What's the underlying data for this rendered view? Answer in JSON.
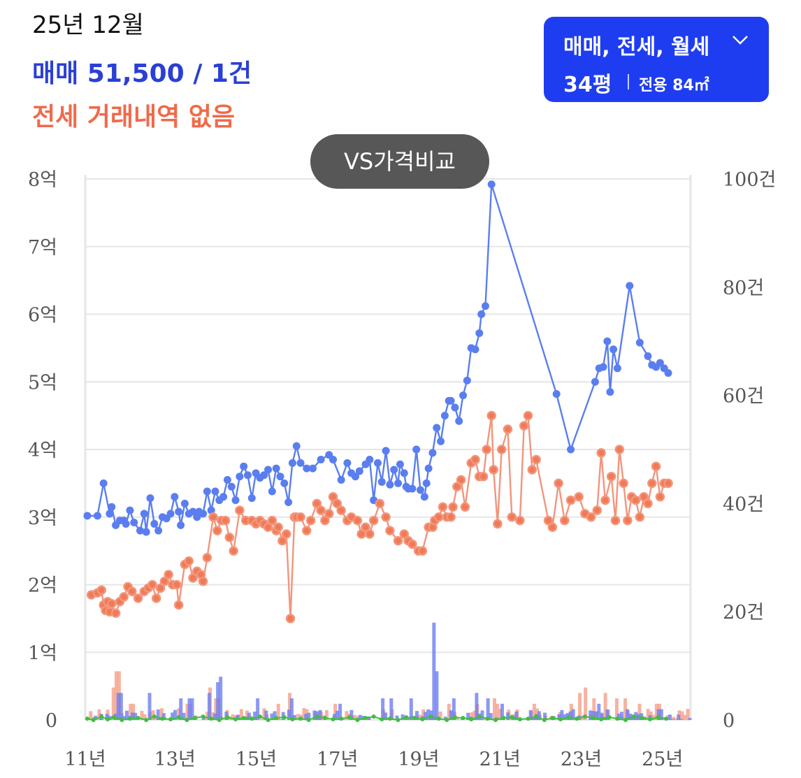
{
  "header": {
    "date": "25년 12월",
    "sale_summary": "매매 51,500 / 1건",
    "jeonse_summary": "전세 거래내역 없음"
  },
  "filter": {
    "types": "매매, 전세, 월세",
    "size": "34평",
    "area": "전용 84㎡",
    "icon": "chevron-down-icon"
  },
  "compare_button": "VS가격비교",
  "colors": {
    "sale": "#5a7ef0",
    "jeonse": "#f2957c",
    "jeonse_marker": "#f07a55",
    "rent_volume": "#3fbf3f",
    "sale_volume": "#6e7ff0",
    "jeonse_volume": "#f4a08a",
    "filter_bg": "#1f3df0",
    "grid": "#e6e6e6"
  },
  "chart_data": {
    "type": "line",
    "x_ticks": [
      "11년",
      "13년",
      "15년",
      "17년",
      "19년",
      "21년",
      "23년",
      "25년"
    ],
    "x_range": [
      2011.0,
      2025.9
    ],
    "y_left": {
      "ticks": [
        "0",
        "1억",
        "2억",
        "3억",
        "4억",
        "5억",
        "6억",
        "7억",
        "8억"
      ],
      "range": [
        0,
        8
      ],
      "unit": "억"
    },
    "y_right": {
      "ticks": [
        "0",
        "20건",
        "40건",
        "60건",
        "80건",
        "100건"
      ],
      "range": [
        0,
        100
      ]
    },
    "grid": true,
    "series": [
      {
        "key": "sale",
        "axis": "left",
        "x": [
          2011.05,
          2011.3,
          2011.45,
          2011.6,
          2011.65,
          2011.75,
          2011.85,
          2011.95,
          2012.0,
          2012.1,
          2012.2,
          2012.35,
          2012.45,
          2012.5,
          2012.6,
          2012.7,
          2012.8,
          2012.9,
          2013.0,
          2013.1,
          2013.2,
          2013.3,
          2013.35,
          2013.45,
          2013.55,
          2013.65,
          2013.75,
          2013.8,
          2013.9,
          2014.0,
          2014.1,
          2014.2,
          2014.3,
          2014.4,
          2014.5,
          2014.6,
          2014.7,
          2014.8,
          2014.9,
          2015.0,
          2015.1,
          2015.2,
          2015.3,
          2015.4,
          2015.5,
          2015.6,
          2015.7,
          2015.8,
          2015.9,
          2016.0,
          2016.1,
          2016.2,
          2016.3,
          2016.45,
          2016.6,
          2016.8,
          2017.0,
          2017.1,
          2017.3,
          2017.45,
          2017.55,
          2017.65,
          2017.75,
          2017.9,
          2018.0,
          2018.1,
          2018.2,
          2018.3,
          2018.4,
          2018.5,
          2018.6,
          2018.7,
          2018.75,
          2018.85,
          2018.9,
          2018.95,
          2019.05,
          2019.15,
          2019.25,
          2019.35,
          2019.4,
          2019.45,
          2019.55,
          2019.65,
          2019.75,
          2019.85,
          2019.95,
          2020.0,
          2020.1,
          2020.2,
          2020.3,
          2020.4,
          2020.5,
          2020.6,
          2020.7,
          2020.75,
          2020.85,
          2021.0,
          2022.6,
          2022.95,
          2023.55,
          2023.65,
          2023.75,
          2023.85,
          2023.92,
          2024.0,
          2024.1,
          2024.4,
          2024.65,
          2024.85,
          2024.95,
          2025.05,
          2025.15,
          2025.25,
          2025.35
        ],
        "y": [
          3.02,
          3.02,
          3.5,
          3.05,
          3.15,
          2.88,
          2.95,
          2.95,
          2.9,
          3.1,
          2.92,
          2.8,
          3.05,
          2.78,
          3.28,
          2.9,
          2.8,
          3.0,
          2.98,
          3.05,
          3.3,
          3.08,
          2.88,
          3.2,
          3.05,
          3.08,
          3.0,
          3.08,
          3.05,
          3.38,
          3.1,
          3.38,
          3.25,
          3.3,
          3.55,
          3.45,
          3.25,
          3.6,
          3.75,
          3.62,
          3.28,
          3.65,
          3.58,
          3.62,
          3.7,
          3.38,
          3.72,
          3.6,
          3.5,
          3.22,
          3.8,
          4.05,
          3.8,
          3.72,
          3.72,
          3.85,
          3.92,
          3.85,
          3.55,
          3.8,
          3.65,
          3.6,
          3.68,
          3.78,
          3.85,
          3.25,
          3.8,
          3.52,
          3.98,
          3.48,
          3.7,
          3.5,
          3.78,
          3.65,
          3.45,
          3.42,
          3.42,
          4.0,
          3.4,
          3.3,
          3.5,
          3.72,
          3.95,
          4.32,
          4.12,
          4.5,
          4.72,
          4.72,
          4.62,
          4.42,
          4.8,
          5.02,
          5.5,
          5.48,
          5.72,
          6.0,
          6.12,
          7.92,
          4.82,
          4.0,
          5.0,
          5.2,
          5.22,
          5.6,
          4.85,
          5.48,
          5.2,
          6.42,
          5.58,
          5.38,
          5.25,
          5.22,
          5.28,
          5.2,
          5.13
        ]
      },
      {
        "key": "jeonse",
        "axis": "left",
        "x": [
          2011.15,
          2011.3,
          2011.4,
          2011.45,
          2011.5,
          2011.55,
          2011.6,
          2011.65,
          2011.75,
          2011.85,
          2011.95,
          2012.05,
          2012.15,
          2012.3,
          2012.45,
          2012.55,
          2012.65,
          2012.75,
          2012.85,
          2012.95,
          2013.05,
          2013.15,
          2013.25,
          2013.3,
          2013.45,
          2013.55,
          2013.65,
          2013.75,
          2013.85,
          2013.9,
          2014.0,
          2014.15,
          2014.25,
          2014.35,
          2014.45,
          2014.55,
          2014.65,
          2014.8,
          2014.95,
          2015.1,
          2015.2,
          2015.3,
          2015.4,
          2015.5,
          2015.6,
          2015.7,
          2015.75,
          2015.85,
          2015.95,
          2016.05,
          2016.15,
          2016.2,
          2016.3,
          2016.45,
          2016.55,
          2016.7,
          2016.8,
          2016.9,
          2017.0,
          2017.1,
          2017.2,
          2017.3,
          2017.45,
          2017.55,
          2017.7,
          2017.8,
          2017.9,
          2018.0,
          2018.1,
          2018.25,
          2018.4,
          2018.5,
          2018.7,
          2018.85,
          2018.95,
          2019.05,
          2019.2,
          2019.3,
          2019.45,
          2019.55,
          2019.6,
          2019.7,
          2019.8,
          2019.9,
          2020.0,
          2020.05,
          2020.15,
          2020.25,
          2020.35,
          2020.5,
          2020.6,
          2020.7,
          2020.8,
          2020.88,
          2021.0,
          2021.05,
          2021.15,
          2021.25,
          2021.4,
          2021.5,
          2021.7,
          2021.8,
          2021.9,
          2022.0,
          2022.1,
          2022.4,
          2022.5,
          2022.65,
          2022.8,
          2022.95,
          2023.15,
          2023.3,
          2023.45,
          2023.6,
          2023.7,
          2023.8,
          2023.95,
          2024.05,
          2024.15,
          2024.25,
          2024.35,
          2024.45,
          2024.55,
          2024.65,
          2024.75,
          2024.85,
          2024.95,
          2025.05,
          2025.15,
          2025.25,
          2025.35
        ],
        "y": [
          1.85,
          1.88,
          1.92,
          1.7,
          1.62,
          1.75,
          1.6,
          1.72,
          1.58,
          1.75,
          1.82,
          1.97,
          1.9,
          1.8,
          1.9,
          1.95,
          2.0,
          1.8,
          1.95,
          2.05,
          2.15,
          2.0,
          2.0,
          1.7,
          2.3,
          2.35,
          2.1,
          2.2,
          2.15,
          2.05,
          2.4,
          3.0,
          2.8,
          2.95,
          2.95,
          2.7,
          2.5,
          3.1,
          2.95,
          2.95,
          2.9,
          2.95,
          2.9,
          2.85,
          2.95,
          2.8,
          2.85,
          2.65,
          2.75,
          1.5,
          3.0,
          3.0,
          3.0,
          2.8,
          2.95,
          3.2,
          3.1,
          2.95,
          3.05,
          3.3,
          3.2,
          3.1,
          2.95,
          3.0,
          2.95,
          2.75,
          2.85,
          2.75,
          2.95,
          3.2,
          3.0,
          2.8,
          2.65,
          2.75,
          2.65,
          2.6,
          2.5,
          2.5,
          2.85,
          2.85,
          2.95,
          3.0,
          3.15,
          3.0,
          3.0,
          3.15,
          3.45,
          3.55,
          3.15,
          3.8,
          3.85,
          3.6,
          3.6,
          4.0,
          4.5,
          3.7,
          2.9,
          4.0,
          4.3,
          3.0,
          2.95,
          4.35,
          4.5,
          3.7,
          3.85,
          2.95,
          2.85,
          3.5,
          2.95,
          3.25,
          3.3,
          3.05,
          3.0,
          3.1,
          3.95,
          3.25,
          3.6,
          2.95,
          4.0,
          3.5,
          2.95,
          3.3,
          3.25,
          3.0,
          3.3,
          3.2,
          3.5,
          3.75,
          3.3,
          3.5,
          3.5
        ]
      },
      {
        "key": "rent",
        "axis": "left",
        "x": [
          2011.05,
          2011.2,
          2011.4,
          2011.55,
          2011.7,
          2011.9,
          2012.1,
          2012.3,
          2012.5,
          2012.7,
          2012.9,
          2013.1,
          2013.3,
          2013.5,
          2013.7,
          2013.9,
          2014.1,
          2014.3,
          2014.5,
          2014.7,
          2014.9,
          2015.1,
          2015.3,
          2015.5,
          2015.7,
          2015.9,
          2016.1,
          2016.3,
          2016.5,
          2016.7,
          2016.9,
          2017.1,
          2017.3,
          2017.5,
          2017.7,
          2017.9,
          2018.1,
          2018.3,
          2018.5,
          2018.7,
          2018.9,
          2019.1,
          2019.3,
          2019.5,
          2019.7,
          2019.9,
          2020.1,
          2020.3,
          2020.5,
          2020.7,
          2020.9,
          2021.1,
          2021.3,
          2021.5,
          2021.7,
          2021.9,
          2022.1,
          2022.3,
          2022.5,
          2022.7,
          2022.9,
          2023.1,
          2023.3,
          2023.5,
          2023.7,
          2023.9,
          2024.1,
          2024.3,
          2024.5,
          2024.7,
          2024.9,
          2025.1,
          2025.3
        ],
        "y": [
          0.02,
          0.0,
          0.05,
          0.01,
          0.04,
          0.0,
          0.02,
          0.03,
          0.0,
          0.05,
          0.02,
          0.01,
          0.04,
          0.0,
          0.03,
          0.05,
          0.02,
          0.0,
          0.04,
          0.01,
          0.03,
          0.02,
          0.05,
          0.0,
          0.03,
          0.04,
          0.01,
          0.02,
          0.0,
          0.05,
          0.03,
          0.01,
          0.02,
          0.04,
          0.0,
          0.03,
          0.05,
          0.01,
          0.02,
          0.0,
          0.04,
          0.03,
          0.01,
          0.05,
          0.02,
          0.0,
          0.04,
          0.03,
          0.01,
          0.05,
          0.02,
          0.0,
          0.03,
          0.04,
          0.01,
          0.02,
          0.05,
          0.0,
          0.03,
          0.01,
          0.04,
          0.02,
          0.05,
          0.03,
          0.01,
          0.04,
          0.02,
          0.0,
          0.05,
          0.03,
          0.01,
          0.04,
          0.02
        ]
      }
    ],
    "volume": {
      "axis": "right",
      "sale_peaks": [
        [
          2011.8,
          5
        ],
        [
          2012.55,
          5
        ],
        [
          2013.3,
          4
        ],
        [
          2013.55,
          4
        ],
        [
          2014.0,
          5
        ],
        [
          2014.2,
          7
        ],
        [
          2014.3,
          8
        ],
        [
          2015.2,
          4
        ],
        [
          2016.05,
          4
        ],
        [
          2017.2,
          3
        ],
        [
          2018.3,
          4
        ],
        [
          2018.5,
          4
        ],
        [
          2019.0,
          4
        ],
        [
          2019.55,
          18
        ],
        [
          2019.6,
          9
        ],
        [
          2020.05,
          4
        ],
        [
          2020.6,
          5
        ],
        [
          2020.85,
          4
        ],
        [
          2021.2,
          3
        ],
        [
          2022.95,
          2
        ],
        [
          2023.6,
          3
        ],
        [
          2024.3,
          2
        ],
        [
          2025.1,
          2
        ]
      ],
      "jeonse_peaks": [
        [
          2011.75,
          9
        ],
        [
          2011.65,
          6
        ],
        [
          2012.1,
          3
        ],
        [
          2013.5,
          3
        ],
        [
          2014.0,
          6
        ],
        [
          2014.2,
          4
        ],
        [
          2015.7,
          3
        ],
        [
          2016.0,
          5
        ],
        [
          2016.4,
          2
        ],
        [
          2017.1,
          3
        ],
        [
          2018.5,
          2
        ],
        [
          2019.9,
          3
        ],
        [
          2020.6,
          3
        ],
        [
          2021.0,
          4
        ],
        [
          2021.1,
          3
        ],
        [
          2022.0,
          3
        ],
        [
          2022.9,
          3
        ],
        [
          2023.15,
          5
        ],
        [
          2023.25,
          6
        ],
        [
          2023.45,
          4
        ],
        [
          2023.75,
          5
        ],
        [
          2024.05,
          4
        ],
        [
          2024.25,
          4
        ],
        [
          2024.6,
          3
        ],
        [
          2025.05,
          3
        ]
      ]
    }
  }
}
